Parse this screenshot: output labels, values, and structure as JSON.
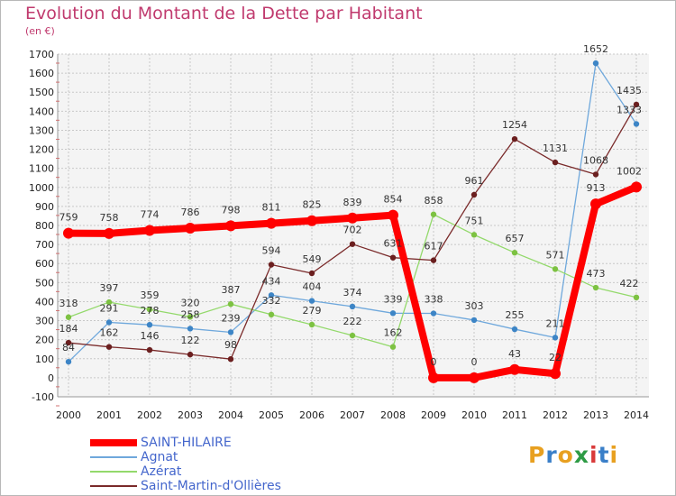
{
  "chart_data": {
    "type": "line",
    "title": "Evolution du Montant de la Dette par Habitant",
    "subtitle": "(en €)",
    "x": [
      "2000",
      "2001",
      "2002",
      "2003",
      "2004",
      "2005",
      "2006",
      "2007",
      "2008",
      "2009",
      "2010",
      "2011",
      "2012",
      "2013",
      "2014"
    ],
    "ylim": [
      -100,
      1700
    ],
    "yticks": [
      -100,
      0,
      100,
      200,
      300,
      400,
      500,
      600,
      700,
      800,
      900,
      1000,
      1100,
      1200,
      1300,
      1400,
      1500,
      1600,
      1700
    ],
    "grid": true,
    "legend_position": "bottom-left",
    "series": [
      {
        "name": "SAINT-HILAIRE",
        "color": "#ff0000",
        "values": [
          759,
          758,
          774,
          786,
          798,
          811,
          825,
          839,
          854,
          0,
          0,
          43,
          22,
          913,
          1002
        ],
        "labels": [
          "759",
          "758",
          "774",
          "786",
          "798",
          "811",
          "825",
          "839",
          "854",
          "0",
          "0",
          "43",
          "22",
          "913",
          "1002"
        ]
      },
      {
        "name": "Agnat",
        "color": "#6fa8dc",
        "marker": "#3d85c6",
        "values": [
          84,
          291,
          278,
          258,
          239,
          434,
          404,
          374,
          339,
          338,
          303,
          255,
          211,
          1652,
          1333
        ],
        "labels": [
          "84",
          "291",
          "278",
          "258",
          "239",
          "434",
          "404",
          "374",
          "339",
          "338",
          "303",
          "255",
          "211",
          "1652",
          "1333"
        ]
      },
      {
        "name": "Azérat",
        "color": "#93d96b",
        "marker": "#7dc242",
        "values": [
          318,
          397,
          359,
          320,
          387,
          332,
          279,
          222,
          162,
          858,
          751,
          657,
          571,
          473,
          422
        ],
        "labels": [
          "318",
          "397",
          "359",
          "320",
          "387",
          "332",
          "279",
          "222",
          "162",
          "858",
          "751",
          "657",
          "571",
          "473",
          "422"
        ]
      },
      {
        "name": "Saint-Martin-d'Ollières",
        "color": "#7a2a2a",
        "marker": "#6b1f1f",
        "values": [
          184,
          162,
          146,
          122,
          98,
          594,
          549,
          702,
          631,
          617,
          961,
          1254,
          1131,
          1068,
          1435
        ],
        "labels": [
          "184",
          "162",
          "146",
          "122",
          "98",
          "594",
          "549",
          "702",
          "631",
          "617",
          "961",
          "1254",
          "1131",
          "1068",
          "1435"
        ]
      }
    ]
  },
  "legend": [
    {
      "label": "SAINT-HILAIRE",
      "color": "#ff0000"
    },
    {
      "label": "Agnat",
      "color": "#6fa8dc"
    },
    {
      "label": "Azérat",
      "color": "#93d96b"
    },
    {
      "label": "Saint-Martin-d'Ollières",
      "color": "#7a2a2a"
    }
  ],
  "logo": {
    "text": "Proxiti",
    "colors": [
      "#e8a020",
      "#3a7fc8",
      "#e8a020",
      "#2e9b45",
      "#d93a3a",
      "#3a7fc8",
      "#e8a020"
    ]
  }
}
